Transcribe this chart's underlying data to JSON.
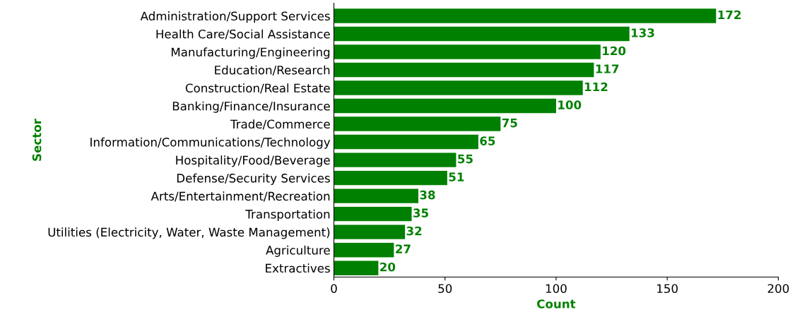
{
  "chart_data": {
    "type": "bar",
    "orientation": "horizontal",
    "xlabel": "Count",
    "ylabel": "Sector",
    "categories": [
      "Administration/Support Services",
      "Health Care/Social Assistance",
      "Manufacturing/Engineering",
      "Education/Research",
      "Construction/Real Estate",
      "Banking/Finance/Insurance",
      "Trade/Commerce",
      "Information/Communications/Technology",
      "Hospitality/Food/Beverage",
      "Defense/Security Services",
      "Arts/Entertainment/Recreation",
      "Transportation",
      "Utilities (Electricity, Water, Waste Management)",
      "Agriculture",
      "Extractives"
    ],
    "values": [
      172,
      133,
      120,
      117,
      112,
      100,
      75,
      65,
      55,
      51,
      38,
      35,
      32,
      27,
      20
    ],
    "color": "#008000",
    "xlim": [
      0,
      200
    ],
    "xticks": [
      0,
      50,
      100,
      150,
      200
    ],
    "data_labels": true,
    "grid": false
  }
}
